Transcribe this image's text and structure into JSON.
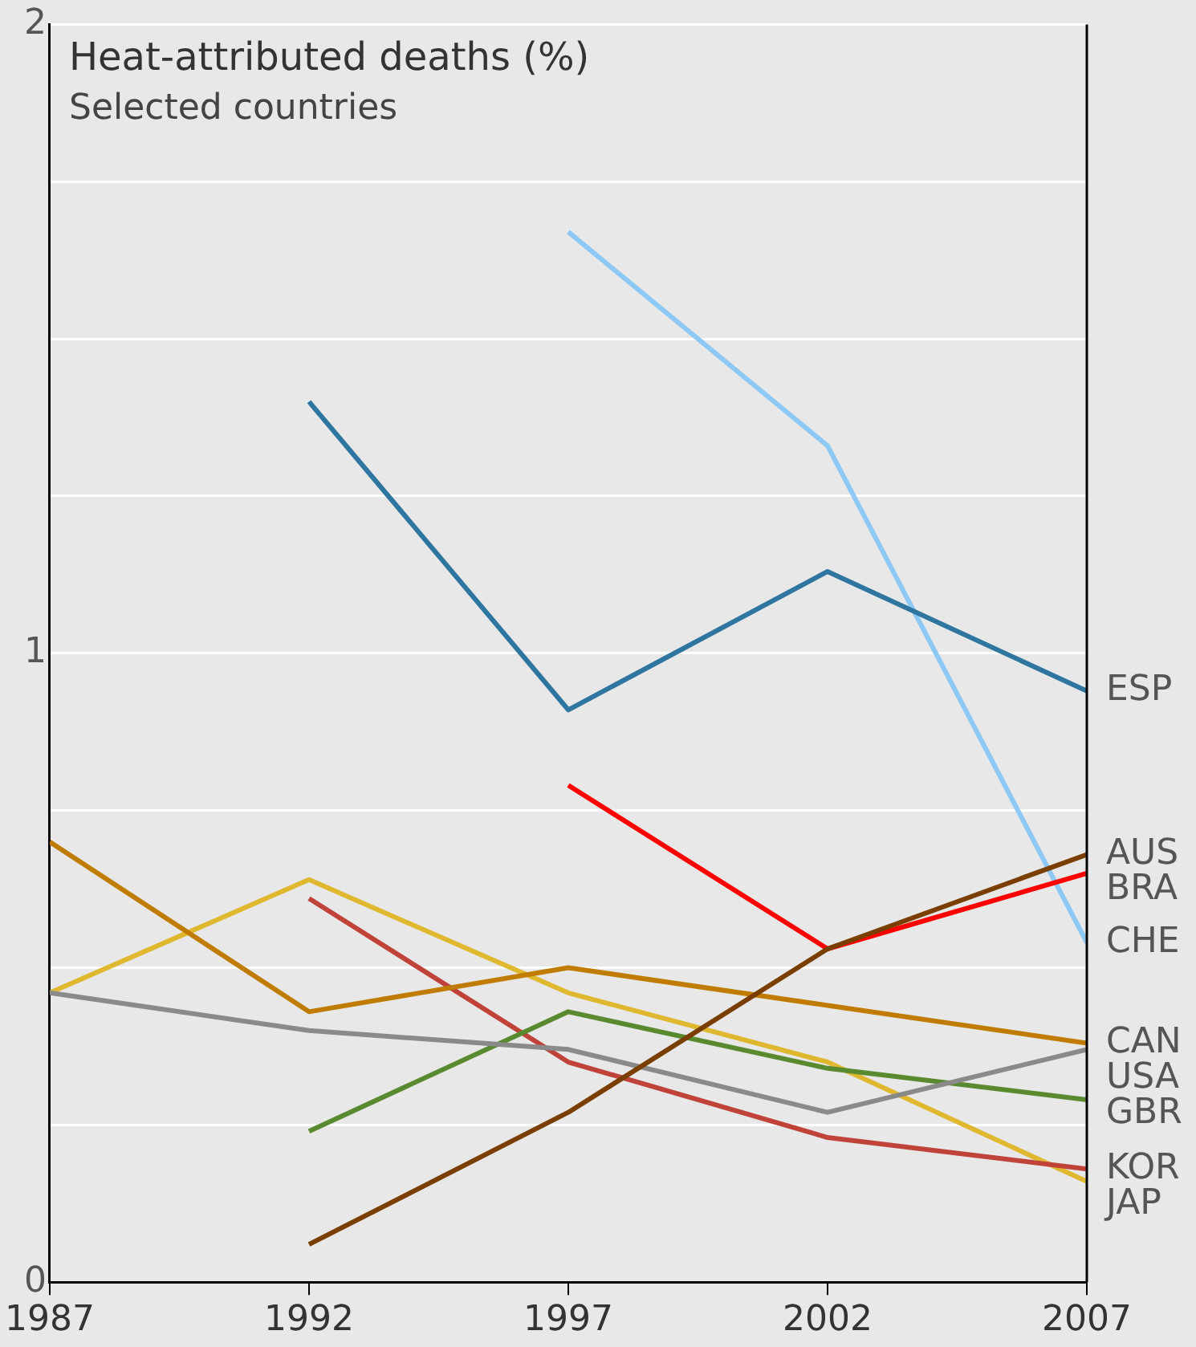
{
  "chart_data": {
    "type": "line",
    "title": "Heat-attributed deaths (%)",
    "subtitle": "Selected countries",
    "x": [
      1987,
      1992,
      1997,
      2002,
      2007
    ],
    "xlim": [
      1987,
      2007
    ],
    "xticks": [
      1987,
      1992,
      1997,
      2002,
      2007
    ],
    "ylim": [
      0,
      2
    ],
    "yticks": [
      0,
      {
        "value": 0.25,
        "label": null
      },
      {
        "value": 0.5,
        "label": null
      },
      {
        "value": 0.75,
        "label": null
      },
      1,
      {
        "value": 1.25,
        "label": null
      },
      {
        "value": 1.5,
        "label": null
      },
      {
        "value": 1.75,
        "label": null
      },
      2
    ],
    "grid": "y",
    "legend": false,
    "marker": "none",
    "line_style": "solid",
    "series": [
      {
        "name": "ESP",
        "color": "#2e75a0",
        "values": [
          null,
          1.4,
          0.91,
          1.13,
          0.94
        ]
      },
      {
        "name": "AUS",
        "color": "#7a3f00",
        "values": [
          null,
          0.06,
          0.27,
          0.53,
          0.68
        ]
      },
      {
        "name": "BRA",
        "color": "#ff0000",
        "values": [
          null,
          null,
          0.79,
          0.53,
          0.65
        ]
      },
      {
        "name": "CHE",
        "color": "#8ec8f5",
        "values": [
          null,
          null,
          1.67,
          1.33,
          0.54
        ]
      },
      {
        "name": "CAN",
        "color": "#c07c00",
        "values": [
          0.7,
          0.43,
          0.5,
          0.44,
          0.38
        ]
      },
      {
        "name": "USA",
        "color": "#8a8a8a",
        "values": [
          0.46,
          0.4,
          0.37,
          0.27,
          0.37
        ]
      },
      {
        "name": "GBR",
        "color": "#5a8a30",
        "values": [
          null,
          0.24,
          0.43,
          0.34,
          0.29
        ]
      },
      {
        "name": "KOR",
        "color": "#c0433a",
        "values": [
          null,
          0.61,
          0.35,
          0.23,
          0.18
        ]
      },
      {
        "name": "JAP",
        "color": "#e0b830",
        "values": [
          0.46,
          0.64,
          0.46,
          0.35,
          0.16
        ]
      }
    ]
  }
}
